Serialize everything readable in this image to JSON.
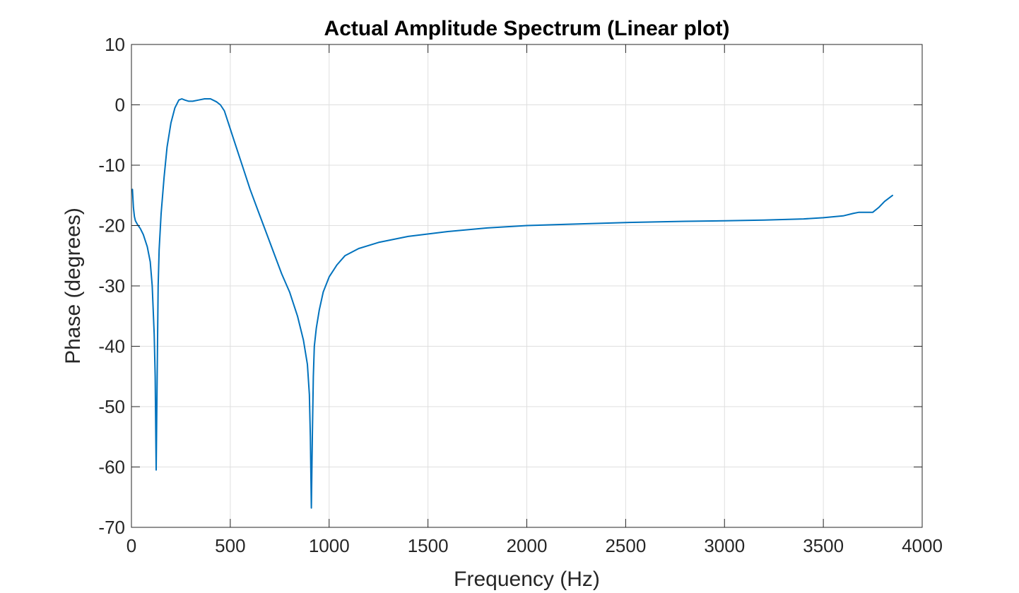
{
  "chart_data": {
    "type": "line",
    "title": "Actual Amplitude Spectrum (Linear plot)",
    "xlabel": "Frequency (Hz)",
    "ylabel": "Phase (degrees)",
    "xlim": [
      0,
      4000
    ],
    "ylim": [
      -70,
      10
    ],
    "xticks": [
      0,
      500,
      1000,
      1500,
      2000,
      2500,
      3000,
      3500,
      4000
    ],
    "yticks": [
      10,
      0,
      -10,
      -20,
      -30,
      -40,
      -50,
      -60,
      -70
    ],
    "xtick_labels": [
      "0",
      "500",
      "1000",
      "1500",
      "2000",
      "2500",
      "3000",
      "3500",
      "4000"
    ],
    "ytick_labels": [
      "10",
      "0",
      "-10",
      "-20",
      "-30",
      "-40",
      "-50",
      "-60",
      "-70"
    ],
    "grid": true,
    "series": [
      {
        "name": "phase",
        "color": "#0072bd",
        "x": [
          5,
          10,
          15,
          20,
          30,
          45,
          60,
          80,
          95,
          105,
          115,
          120,
          125,
          130,
          135,
          140,
          150,
          165,
          180,
          200,
          220,
          240,
          255,
          270,
          290,
          310,
          340,
          370,
          400,
          430,
          450,
          470,
          490,
          510,
          540,
          570,
          600,
          640,
          680,
          720,
          760,
          800,
          840,
          870,
          890,
          900,
          905,
          910,
          915,
          920,
          925,
          935,
          950,
          970,
          1000,
          1040,
          1080,
          1150,
          1250,
          1400,
          1600,
          1800,
          2000,
          2200,
          2500,
          2800,
          3000,
          3200,
          3400,
          3500,
          3600,
          3650,
          3680,
          3720,
          3750,
          3780,
          3810,
          3850
        ],
        "values": [
          -14,
          -17,
          -18.5,
          -19.2,
          -19.8,
          -20.5,
          -21.5,
          -23.5,
          -26,
          -30,
          -38,
          -45,
          -60.5,
          -45,
          -30,
          -24,
          -18,
          -12,
          -7,
          -3,
          -0.5,
          0.8,
          1,
          0.8,
          0.6,
          0.6,
          0.8,
          1,
          1,
          0.5,
          0,
          -1,
          -3,
          -5,
          -8,
          -11,
          -14,
          -17.5,
          -21,
          -24.5,
          -28,
          -31,
          -35,
          -39,
          -43,
          -48,
          -55,
          -66.8,
          -55,
          -45,
          -40,
          -37,
          -34,
          -31,
          -28.5,
          -26.5,
          -25,
          -23.8,
          -22.8,
          -21.8,
          -21,
          -20.4,
          -20,
          -19.8,
          -19.5,
          -19.3,
          -19.2,
          -19.1,
          -18.9,
          -18.7,
          -18.4,
          -18,
          -17.8,
          -17.8,
          -17.8,
          -17,
          -16,
          -15
        ]
      }
    ]
  }
}
